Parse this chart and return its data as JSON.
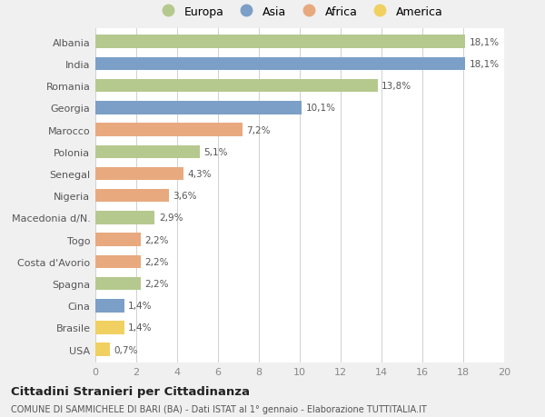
{
  "categories": [
    "Albania",
    "India",
    "Romania",
    "Georgia",
    "Marocco",
    "Polonia",
    "Senegal",
    "Nigeria",
    "Macedonia d/N.",
    "Togo",
    "Costa d'Avorio",
    "Spagna",
    "Cina",
    "Brasile",
    "USA"
  ],
  "values": [
    18.1,
    18.1,
    13.8,
    10.1,
    7.2,
    5.1,
    4.3,
    3.6,
    2.9,
    2.2,
    2.2,
    2.2,
    1.4,
    1.4,
    0.7
  ],
  "labels": [
    "18,1%",
    "18,1%",
    "13,8%",
    "10,1%",
    "7,2%",
    "5,1%",
    "4,3%",
    "3,6%",
    "2,9%",
    "2,2%",
    "2,2%",
    "2,2%",
    "1,4%",
    "1,4%",
    "0,7%"
  ],
  "continents": [
    "Europa",
    "Asia",
    "Europa",
    "Asia",
    "Africa",
    "Europa",
    "Africa",
    "Africa",
    "Europa",
    "Africa",
    "Africa",
    "Europa",
    "Asia",
    "America",
    "America"
  ],
  "colors": {
    "Europa": "#b5c98e",
    "Asia": "#7b9fc7",
    "Africa": "#e8a97e",
    "America": "#f0d060"
  },
  "legend_order": [
    "Europa",
    "Asia",
    "Africa",
    "America"
  ],
  "title": "Cittadini Stranieri per Cittadinanza",
  "subtitle": "COMUNE DI SAMMICHELE DI BARI (BA) - Dati ISTAT al 1° gennaio - Elaborazione TUTTITALIA.IT",
  "xlim": [
    0,
    20
  ],
  "xticks": [
    0,
    2,
    4,
    6,
    8,
    10,
    12,
    14,
    16,
    18,
    20
  ],
  "background_color": "#f0f0f0",
  "bar_background": "#ffffff",
  "grid_color": "#d0d0d0"
}
